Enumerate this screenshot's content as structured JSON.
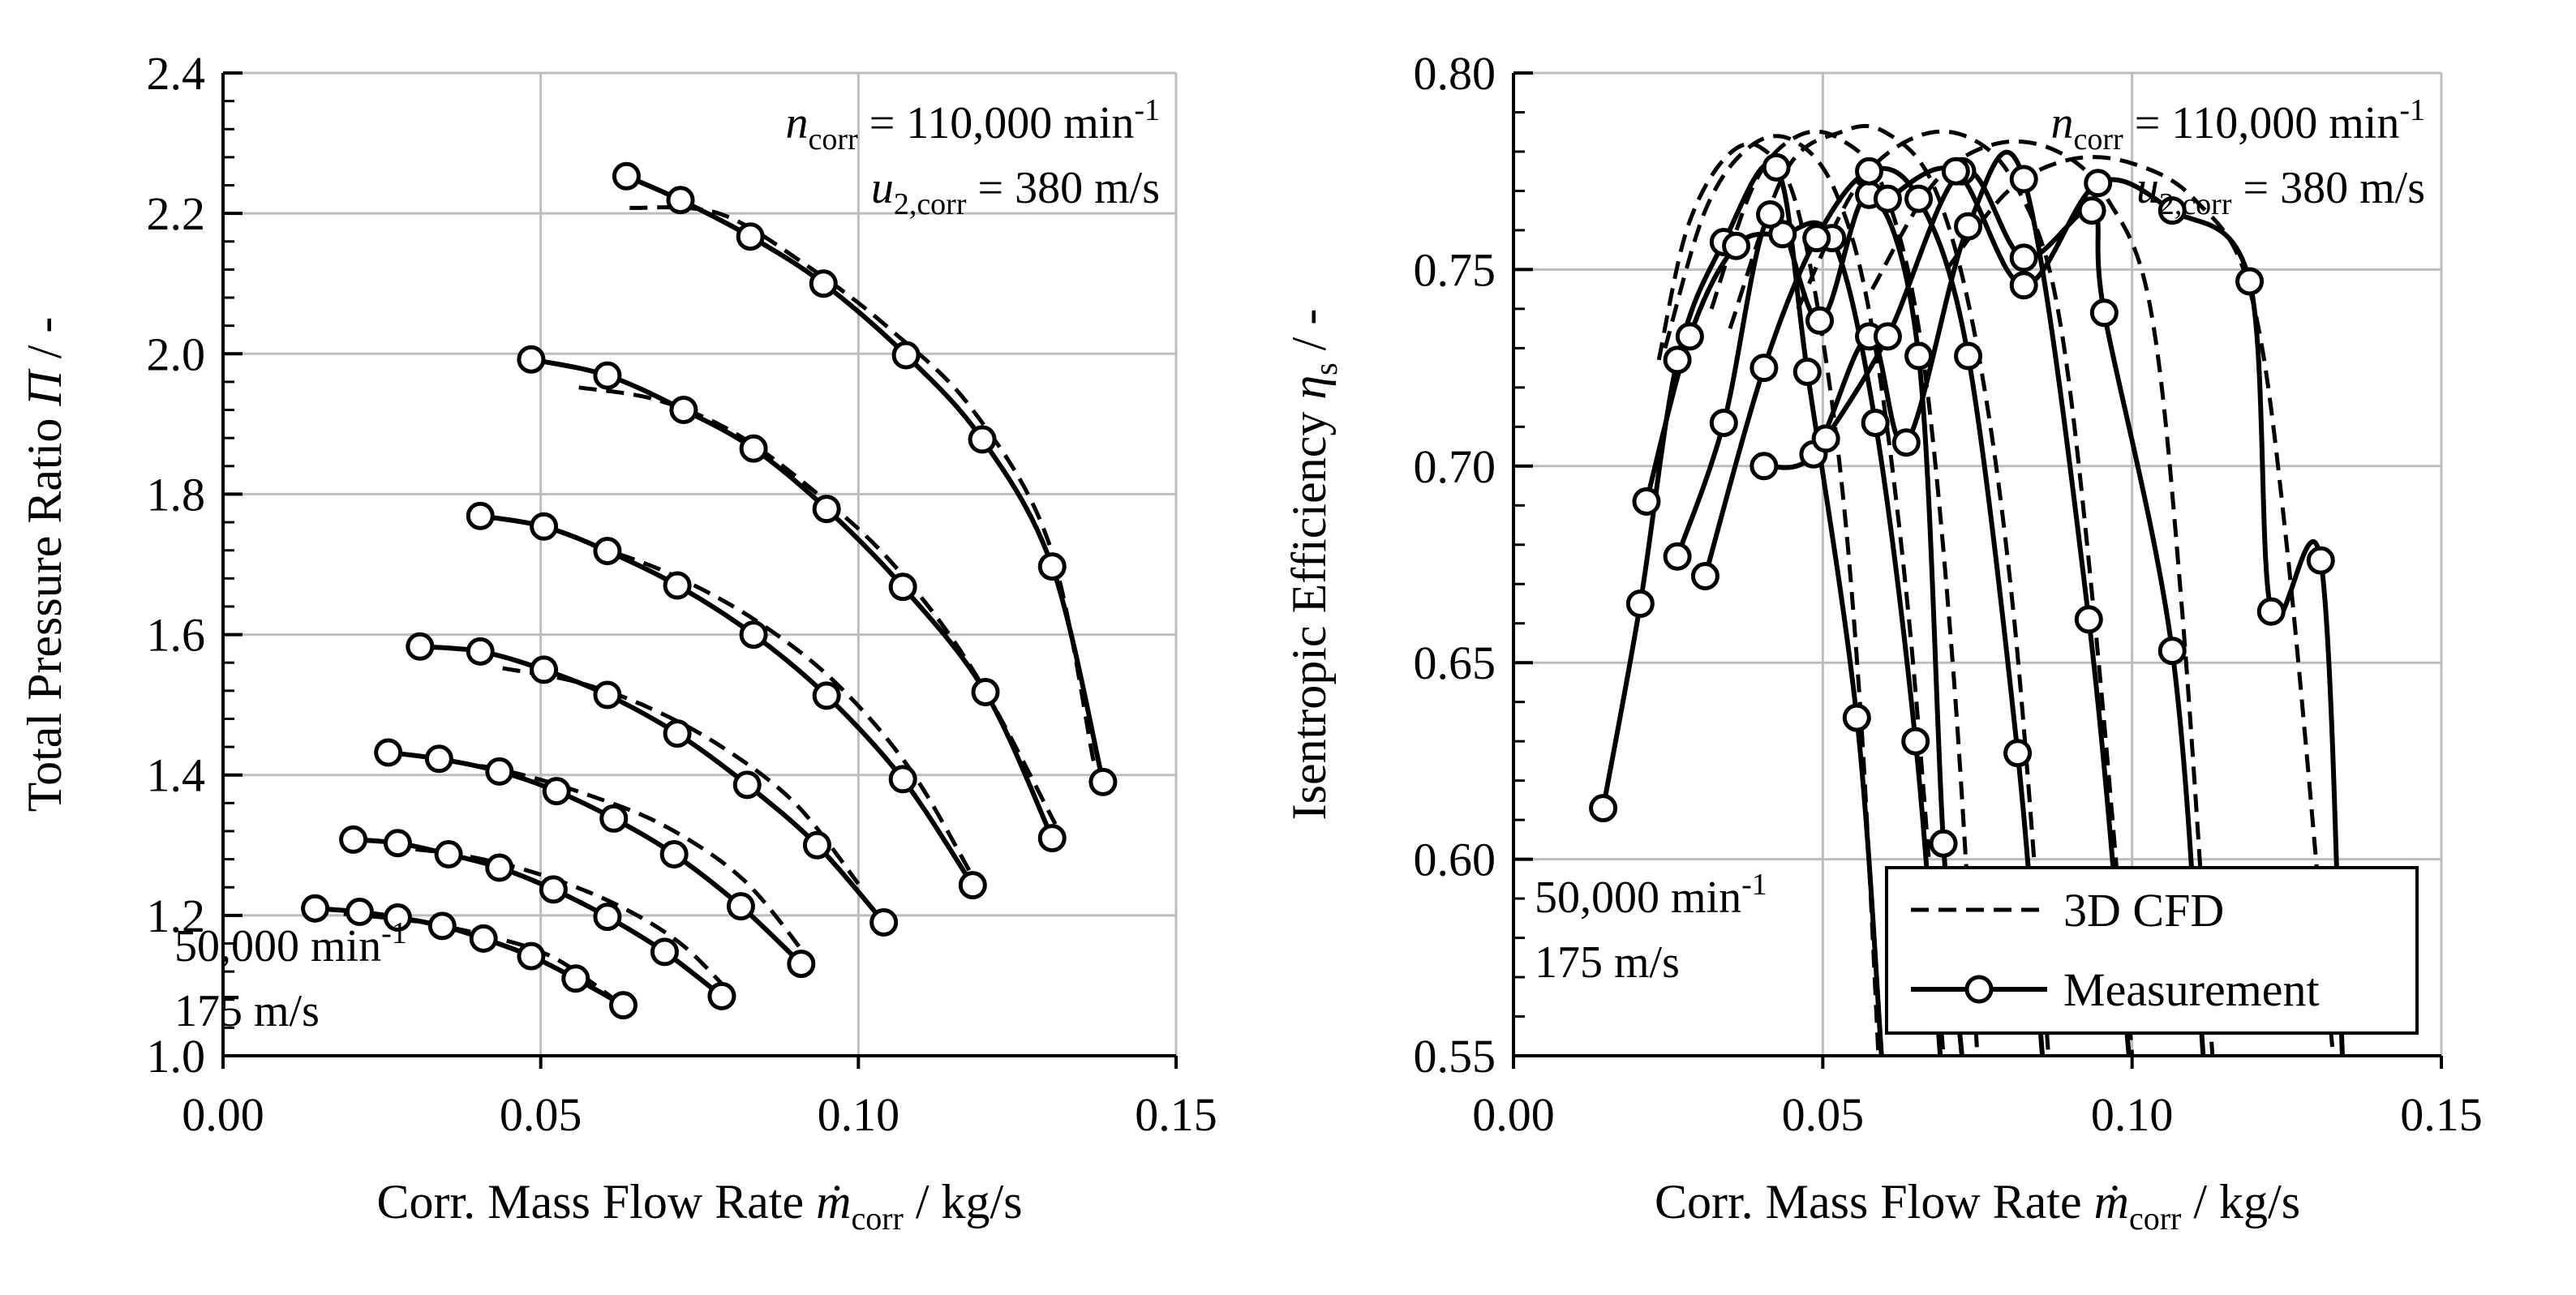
{
  "chart_data": [
    {
      "type": "line",
      "xlabel_main": "Corr. Mass Flow Rate ",
      "xlabel_symbol": "ṁ",
      "xlabel_sub": "corr",
      "xlabel_unit": " / kg/s",
      "ylabel_main": "Total Pressure Ratio ",
      "ylabel_symbol": "Π",
      "ylabel_unit": " / -",
      "xlim": [
        0.0,
        0.15
      ],
      "ylim": [
        1.0,
        2.4
      ],
      "xticks": [
        "0.00",
        "0.05",
        "0.10",
        "0.15"
      ],
      "yticks": [
        "1.0",
        "1.2",
        "1.4",
        "1.6",
        "1.8",
        "2.0",
        "2.2",
        "2.4"
      ],
      "grid": true,
      "annotation_top": {
        "n_symbol": "n",
        "n_sub": "corr",
        "n_value": " = 110,000 min",
        "n_exp": "-1",
        "u_symbol": "u",
        "u_sub": "2,corr",
        "u_value": " = 380 m/s"
      },
      "annotation_bottom": {
        "n_value": "50,000 min",
        "n_exp": "-1",
        "u_value": "175 m/s"
      },
      "measurement": [
        {
          "x": [
            0.0145,
            0.0215,
            0.0275,
            0.0345,
            0.041,
            0.0485,
            0.0555,
            0.063
          ],
          "y": [
            1.21,
            1.205,
            1.197,
            1.185,
            1.167,
            1.142,
            1.11,
            1.072
          ]
        },
        {
          "x": [
            0.0205,
            0.0275,
            0.0355,
            0.0435,
            0.052,
            0.0605,
            0.0695,
            0.0785
          ],
          "y": [
            1.308,
            1.303,
            1.287,
            1.268,
            1.237,
            1.198,
            1.148,
            1.085
          ]
        },
        {
          "x": [
            0.026,
            0.034,
            0.0435,
            0.0525,
            0.0615,
            0.071,
            0.0815,
            0.091
          ],
          "y": [
            1.432,
            1.423,
            1.405,
            1.377,
            1.338,
            1.287,
            1.213,
            1.131
          ]
        },
        {
          "x": [
            0.031,
            0.0405,
            0.0505,
            0.0605,
            0.0715,
            0.0825,
            0.0935,
            0.104
          ],
          "y": [
            1.583,
            1.576,
            1.55,
            1.514,
            1.459,
            1.386,
            1.3,
            1.19
          ]
        },
        {
          "x": [
            0.0405,
            0.0505,
            0.0605,
            0.0715,
            0.0835,
            0.095,
            0.107,
            0.118
          ],
          "y": [
            1.769,
            1.754,
            1.719,
            1.67,
            1.6,
            1.513,
            1.394,
            1.243
          ]
        },
        {
          "x": [
            0.0485,
            0.0605,
            0.0725,
            0.0835,
            0.095,
            0.107,
            0.12,
            0.1305
          ],
          "y": [
            1.992,
            1.969,
            1.92,
            1.865,
            1.779,
            1.668,
            1.518,
            1.31
          ]
        },
        {
          "x": [
            0.0635,
            0.072,
            0.083,
            0.0945,
            0.1075,
            0.1195,
            0.1305,
            0.1385
          ],
          "y": [
            2.253,
            2.219,
            2.167,
            2.1,
            1.998,
            1.878,
            1.697,
            1.39
          ]
        }
      ],
      "cfd": [
        {
          "x": [
            0.019,
            0.03,
            0.042,
            0.052,
            0.062
          ],
          "y": [
            1.202,
            1.192,
            1.17,
            1.14,
            1.078
          ]
        },
        {
          "x": [
            0.026,
            0.038,
            0.05,
            0.062,
            0.072,
            0.08
          ],
          "y": [
            1.298,
            1.285,
            1.258,
            1.215,
            1.16,
            1.088
          ]
        },
        {
          "x": [
            0.032,
            0.045,
            0.058,
            0.07,
            0.082,
            0.092
          ],
          "y": [
            1.425,
            1.405,
            1.37,
            1.325,
            1.25,
            1.14
          ]
        },
        {
          "x": [
            0.044,
            0.055,
            0.066,
            0.078,
            0.09,
            0.1
          ],
          "y": [
            1.552,
            1.534,
            1.5,
            1.443,
            1.36,
            1.245
          ]
        },
        {
          "x": [
            0.058,
            0.07,
            0.083,
            0.096,
            0.108,
            0.118
          ],
          "y": [
            1.728,
            1.688,
            1.625,
            1.535,
            1.41,
            1.255
          ]
        },
        {
          "x": [
            0.056,
            0.068,
            0.08,
            0.092,
            0.105,
            0.118,
            0.131
          ],
          "y": [
            1.952,
            1.935,
            1.89,
            1.812,
            1.705,
            1.55,
            1.33
          ]
        },
        {
          "x": [
            0.064,
            0.078,
            0.092,
            0.105,
            0.118,
            0.13,
            0.137
          ],
          "y": [
            2.208,
            2.2,
            2.125,
            2.035,
            1.92,
            1.73,
            1.42
          ]
        }
      ]
    },
    {
      "type": "line",
      "xlabel_main": "Corr. Mass Flow Rate ",
      "xlabel_symbol": "ṁ",
      "xlabel_sub": "corr",
      "xlabel_unit": " / kg/s",
      "ylabel_main": "Isentropic Efficiency ",
      "ylabel_symbol": "η",
      "ylabel_sub": "s",
      "ylabel_unit": " / -",
      "xlim": [
        0.0,
        0.15
      ],
      "ylim": [
        0.55,
        0.8
      ],
      "xticks": [
        "0.00",
        "0.05",
        "0.10",
        "0.15"
      ],
      "yticks": [
        "0.55",
        "0.60",
        "0.65",
        "0.70",
        "0.75",
        "0.80"
      ],
      "grid": true,
      "annotation_top": {
        "n_symbol": "n",
        "n_sub": "corr",
        "n_value": " = 110,000 min",
        "n_exp": "-1",
        "u_symbol": "u",
        "u_sub": "2,corr",
        "u_value": " = 380 m/s"
      },
      "annotation_bottom": {
        "n_value": "50,000 min",
        "n_exp": "-1",
        "u_value": "175 m/s"
      },
      "legend": {
        "position": "bottom-right",
        "entries": [
          "3D CFD",
          "Measurement"
        ]
      },
      "measurement": [
        {
          "x": [
            0.0145,
            0.0205,
            0.0265,
            0.034,
            0.0425,
            0.0475,
            0.0555,
            0.0595
          ],
          "y": [
            0.613,
            0.665,
            0.727,
            0.757,
            0.776,
            0.724,
            0.636,
            0.55
          ]
        },
        {
          "x": [
            0.0215,
            0.0285,
            0.036,
            0.0435,
            0.0515,
            0.0585,
            0.065,
            0.069
          ],
          "y": [
            0.691,
            0.733,
            0.756,
            0.759,
            0.758,
            0.711,
            0.63,
            0.55
          ]
        },
        {
          "x": [
            0.0265,
            0.034,
            0.0415,
            0.0495,
            0.0575,
            0.0655,
            0.0695,
            0.0725
          ],
          "y": [
            0.677,
            0.711,
            0.764,
            0.737,
            0.769,
            0.728,
            0.604,
            0.55
          ]
        },
        {
          "x": [
            0.031,
            0.0405,
            0.049,
            0.0575,
            0.0655,
            0.0735,
            0.0815,
            0.0855
          ],
          "y": [
            0.672,
            0.725,
            0.758,
            0.775,
            0.768,
            0.728,
            0.627,
            0.55
          ]
        },
        {
          "x": [
            0.0405,
            0.0485,
            0.0575,
            0.0635,
            0.0735,
            0.0825,
            0.093,
            0.0995
          ],
          "y": [
            0.7,
            0.703,
            0.733,
            0.706,
            0.761,
            0.773,
            0.661,
            0.55
          ]
        },
        {
          "x": [
            0.0505,
            0.0605,
            0.0725,
            0.0825,
            0.0935,
            0.0955,
            0.1065,
            0.1115
          ],
          "y": [
            0.707,
            0.733,
            0.775,
            0.753,
            0.765,
            0.739,
            0.653,
            0.55
          ]
        },
        {
          "x": [
            0.0605,
            0.0715,
            0.0825,
            0.0945,
            0.1065,
            0.119,
            0.1225,
            0.1305,
            0.134
          ],
          "y": [
            0.768,
            0.775,
            0.746,
            0.772,
            0.765,
            0.747,
            0.663,
            0.676,
            0.55
          ]
        }
      ],
      "cfd": [
        {
          "x": [
            0.0235,
            0.028,
            0.034,
            0.04,
            0.046,
            0.052,
            0.056,
            0.059
          ],
          "y": [
            0.727,
            0.76,
            0.778,
            0.781,
            0.765,
            0.71,
            0.64,
            0.55
          ]
        },
        {
          "x": [
            0.0245,
            0.031,
            0.038,
            0.045,
            0.052,
            0.058,
            0.064,
            0.0695
          ],
          "y": [
            0.73,
            0.765,
            0.781,
            0.783,
            0.77,
            0.735,
            0.66,
            0.55
          ]
        },
        {
          "x": [
            0.032,
            0.039,
            0.046,
            0.053,
            0.06,
            0.066,
            0.071,
            0.075
          ],
          "y": [
            0.74,
            0.772,
            0.784,
            0.783,
            0.77,
            0.73,
            0.65,
            0.55
          ]
        },
        {
          "x": [
            0.035,
            0.044,
            0.053,
            0.06,
            0.068,
            0.075,
            0.081,
            0.0865
          ],
          "y": [
            0.735,
            0.775,
            0.785,
            0.785,
            0.771,
            0.73,
            0.66,
            0.55
          ]
        },
        {
          "x": [
            0.046,
            0.055,
            0.064,
            0.073,
            0.081,
            0.088,
            0.094,
            0.1
          ],
          "y": [
            0.74,
            0.77,
            0.783,
            0.784,
            0.772,
            0.74,
            0.66,
            0.55
          ]
        },
        {
          "x": [
            0.058,
            0.068,
            0.078,
            0.088,
            0.096,
            0.103,
            0.108,
            0.113
          ],
          "y": [
            0.745,
            0.772,
            0.782,
            0.78,
            0.768,
            0.74,
            0.665,
            0.55
          ]
        },
        {
          "x": [
            0.07,
            0.08,
            0.09,
            0.1,
            0.11,
            0.119,
            0.125,
            0.1325
          ],
          "y": [
            0.75,
            0.77,
            0.778,
            0.777,
            0.768,
            0.745,
            0.68,
            0.55
          ]
        }
      ]
    }
  ]
}
